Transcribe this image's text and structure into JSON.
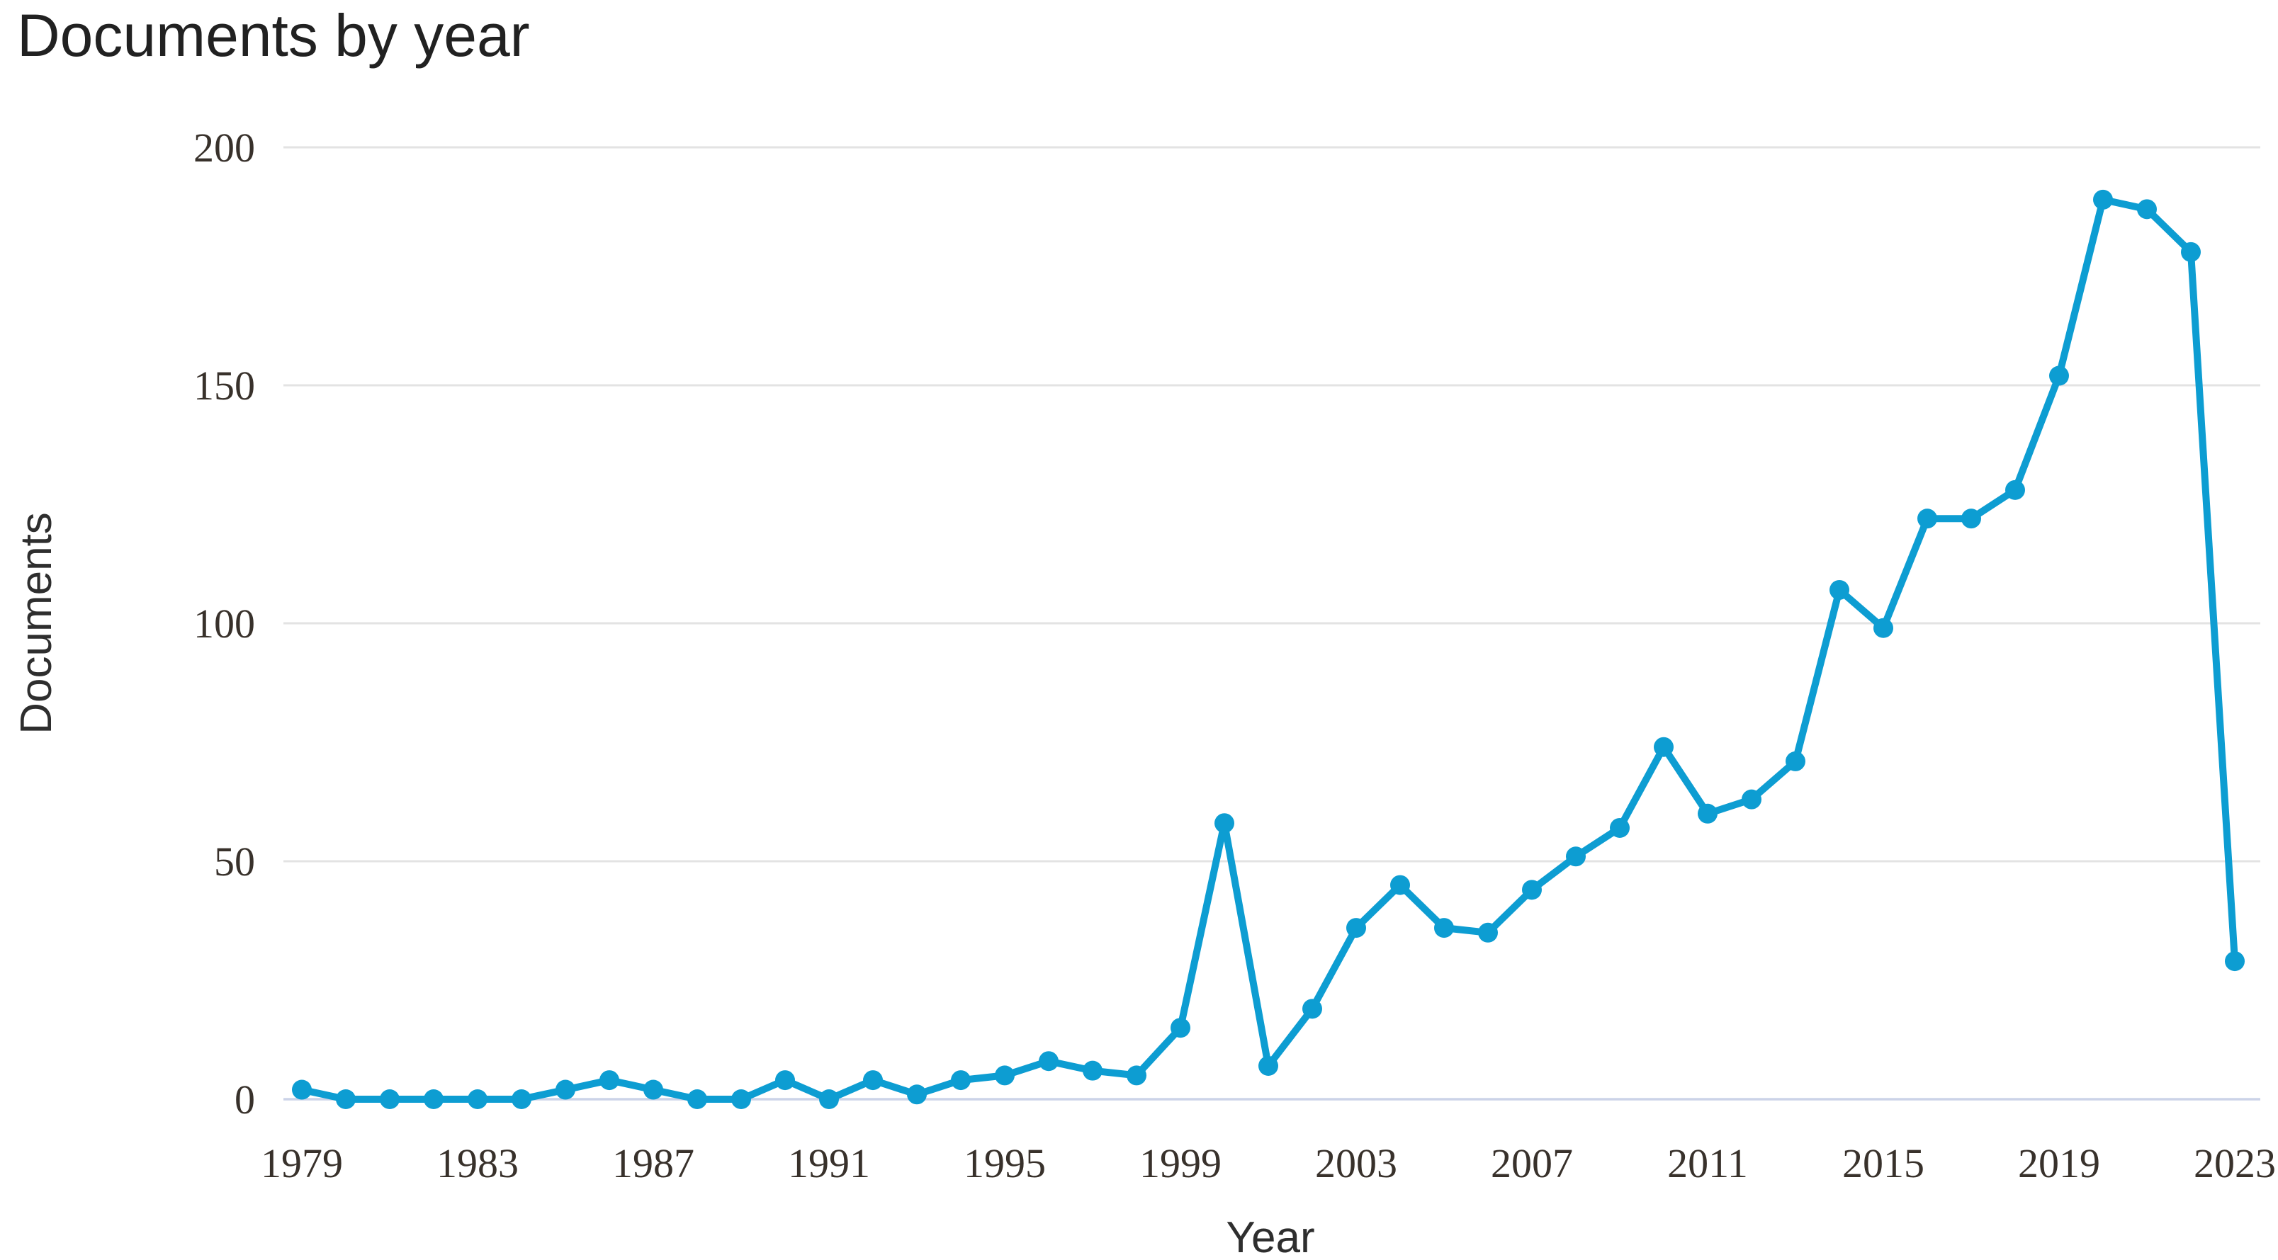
{
  "title": "Documents by year",
  "axes": {
    "y_title": "Documents",
    "x_title": "Year",
    "y_tick_labels": [
      "0",
      "50",
      "100",
      "150",
      "200"
    ],
    "x_tick_labels": [
      "1979",
      "1983",
      "1987",
      "1991",
      "1995",
      "1999",
      "2003",
      "2007",
      "2011",
      "2015",
      "2019",
      "2023"
    ]
  },
  "colors": {
    "line": "#0d9dd2",
    "marker": "#0d9dd2",
    "gridline": "#e3e3e3",
    "zero_gridline": "#ccd3e8",
    "tick_text": "#38312b",
    "title_text": "#212121"
  },
  "chart_data": {
    "type": "line",
    "title": "Documents by year",
    "xlabel": "Year",
    "ylabel": "Documents",
    "x": [
      1979,
      1980,
      1981,
      1982,
      1983,
      1984,
      1985,
      1986,
      1987,
      1988,
      1989,
      1990,
      1991,
      1992,
      1993,
      1994,
      1995,
      1996,
      1997,
      1998,
      1999,
      2000,
      2001,
      2002,
      2003,
      2004,
      2005,
      2006,
      2007,
      2008,
      2009,
      2010,
      2011,
      2012,
      2013,
      2014,
      2015,
      2016,
      2017,
      2018,
      2019,
      2020,
      2021,
      2022,
      2023
    ],
    "values": [
      2,
      0,
      0,
      0,
      0,
      0,
      2,
      4,
      2,
      0,
      0,
      4,
      0,
      4,
      1,
      4,
      5,
      8,
      6,
      5,
      15,
      58,
      7,
      19,
      36,
      45,
      36,
      35,
      44,
      51,
      57,
      74,
      60,
      63,
      71,
      107,
      99,
      122,
      122,
      128,
      152,
      189,
      187,
      178,
      29
    ],
    "ylim": [
      0,
      200
    ],
    "yticks": [
      0,
      50,
      100,
      150,
      200
    ],
    "xticks": [
      1979,
      1983,
      1987,
      1991,
      1995,
      1999,
      2003,
      2007,
      2011,
      2015,
      2019,
      2023
    ],
    "grid": "horizontal-only",
    "legend": "none",
    "marker": "circle"
  }
}
